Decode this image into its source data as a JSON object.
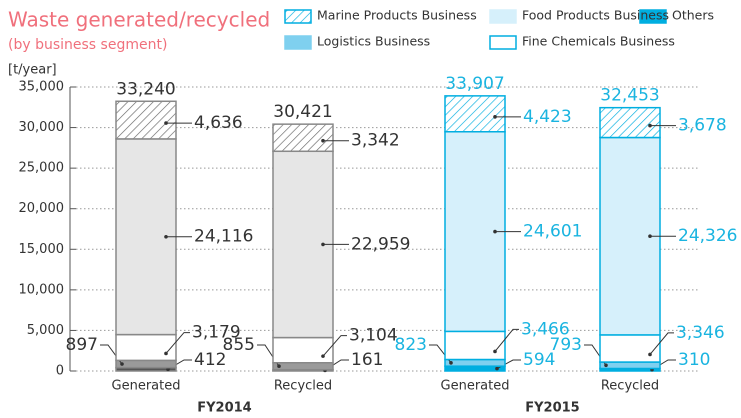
{
  "chart_data": {
    "type": "stacked_bar",
    "title": "Waste generated/recycled",
    "subtitle": "(by business segment)",
    "y_axis_label": "[t/year]",
    "title_color": "#f0707c",
    "categories": [
      "Generated",
      "Recycled",
      "Generated",
      "Recycled"
    ],
    "groups": [
      {
        "name": "FY2014",
        "label_color": "#333333"
      },
      {
        "name": "FY2015",
        "label_color": "#1ab4e0"
      }
    ],
    "category_groups": [
      0,
      0,
      1,
      1
    ],
    "series": [
      {
        "name": "Others",
        "color": "#00aee0",
        "colors": [
          "#555555",
          "#555555",
          "#00aee0",
          "#00aee0"
        ],
        "values": [
          412,
          161,
          594,
          310
        ]
      },
      {
        "name": "Logistics Business",
        "color": "#7fd0ef",
        "colors": [
          "#9a9a9a",
          "#9a9a9a",
          "#7fd0ef",
          "#7fd0ef"
        ],
        "values": [
          897,
          855,
          823,
          793
        ]
      },
      {
        "name": "Fine Chemicals Business",
        "color": "#ffffff",
        "colors": [
          "#ffffff",
          "#ffffff",
          "#ffffff",
          "#ffffff"
        ],
        "values": [
          3179,
          3104,
          3466,
          3346
        ],
        "value_labels": [
          "3,179",
          "3,104",
          "3,466",
          "3,346"
        ]
      },
      {
        "name": "Food Products Business",
        "color": "#d6f0fb",
        "colors": [
          "#e6e6e6",
          "#e6e6e6",
          "#d6f0fb",
          "#d6f0fb"
        ],
        "values": [
          24116,
          22959,
          24601,
          24326
        ],
        "value_labels": [
          "24,116",
          "22,959",
          "24,601",
          "24,326"
        ]
      },
      {
        "name": "Marine Products Business",
        "color": "#00aee0",
        "hatched": true,
        "colors": [
          "#666666",
          "#666666",
          "#00aee0",
          "#00aee0"
        ],
        "values": [
          4636,
          3342,
          4423,
          3678
        ],
        "value_labels": [
          "4,636",
          "3,342",
          "4,423",
          "3,678"
        ]
      }
    ],
    "border_colors": [
      "#888888",
      "#888888",
      "#00aee0",
      "#00aee0"
    ],
    "totals": [
      33240,
      30421,
      33907,
      32453
    ],
    "total_labels": [
      "33,240",
      "30,421",
      "33,907",
      "32,453"
    ],
    "ylim": [
      0,
      35000
    ],
    "yticks": [
      0,
      {
        "value": 5000,
        "label": "5,000"
      },
      {
        "value": 10000,
        "label": "10,000"
      },
      {
        "value": 15000,
        "label": "15,000"
      },
      {
        "value": 20000,
        "label": "20,000"
      },
      {
        "value": 25000,
        "label": "25,000"
      },
      {
        "value": 30000,
        "label": "30,000"
      },
      {
        "value": 35000,
        "label": "35,000"
      }
    ],
    "grid": true
  }
}
